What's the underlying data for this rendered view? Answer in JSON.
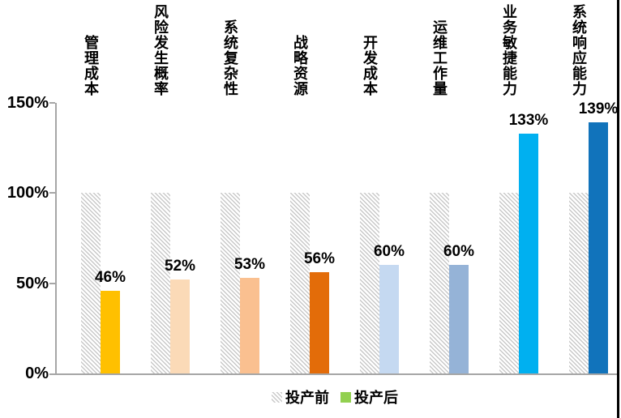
{
  "chart_data": {
    "type": "bar",
    "title": "",
    "categories": [
      "管理成本",
      "风险发生概率",
      "系统复杂性",
      "战略资源",
      "开发成本",
      "运维工作量",
      "业务敏捷能力",
      "系统响应能力"
    ],
    "series": [
      {
        "name": "投产前",
        "values": [
          100,
          100,
          100,
          100,
          100,
          100,
          100,
          100
        ],
        "style": "hatched-gray"
      },
      {
        "name": "投产后",
        "values": [
          46,
          52,
          53,
          56,
          60,
          60,
          133,
          139
        ],
        "bar_colors": [
          "#FFC000",
          "#FBDAB7",
          "#FAC090",
          "#E36C09",
          "#C5D9F1",
          "#95B3D7",
          "#00B0F0",
          "#1173BB"
        ]
      }
    ],
    "value_labels": [
      "46%",
      "52%",
      "53%",
      "56%",
      "60%",
      "60%",
      "133%",
      "139%"
    ],
    "ytick_labels": [
      "150%",
      "100%",
      "50%",
      "0%"
    ],
    "ylim": [
      0,
      150
    ],
    "grid": false,
    "legend_position": "bottom",
    "legend": [
      {
        "label": "投产前",
        "swatch": "hatched-gray"
      },
      {
        "label": "投产后",
        "swatch": "solid",
        "swatch_color": "#92D050"
      }
    ],
    "axis_color": "#A6A6A6",
    "hatch_color": "#C9C9C9"
  }
}
